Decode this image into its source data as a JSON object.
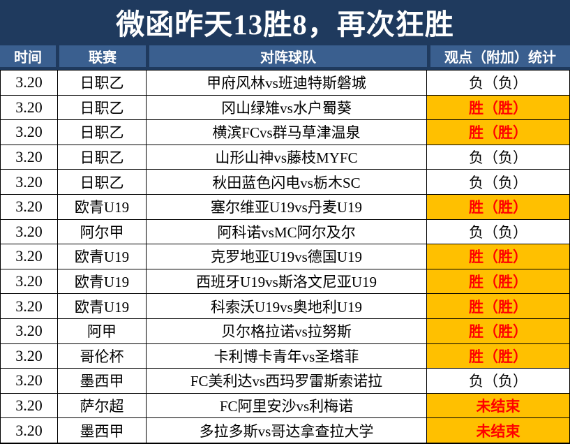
{
  "banner": {
    "title": "微函昨天13胜8，再次狂胜"
  },
  "table": {
    "headers": [
      "时间",
      "联赛",
      "对阵球队",
      "观点（附加）统计"
    ],
    "rows": [
      {
        "date": "3.20",
        "league": "日职乙",
        "match": "甲府风林vs班迪特斯磐城",
        "result": "负（负）",
        "result_type": "loss"
      },
      {
        "date": "3.20",
        "league": "日职乙",
        "match": "冈山绿雉vs水户蜀葵",
        "result": "胜（胜）",
        "result_type": "win"
      },
      {
        "date": "3.20",
        "league": "日职乙",
        "match": "横滨FCvs群马草津温泉",
        "result": "胜（胜）",
        "result_type": "win"
      },
      {
        "date": "3.20",
        "league": "日职乙",
        "match": "山形山神vs藤枝MYFC",
        "result": "负（负）",
        "result_type": "loss"
      },
      {
        "date": "3.20",
        "league": "日职乙",
        "match": "秋田蓝色闪电vs栃木SC",
        "result": "负（负）",
        "result_type": "loss"
      },
      {
        "date": "3.20",
        "league": "欧青U19",
        "match": "塞尔维亚U19vs丹麦U19",
        "result": "胜（胜）",
        "result_type": "win"
      },
      {
        "date": "3.20",
        "league": "阿尔甲",
        "match": "阿科诺vsMC阿尔及尔",
        "result": "负（负）",
        "result_type": "loss"
      },
      {
        "date": "3.20",
        "league": "欧青U19",
        "match": "克罗地亚U19vs德国U19",
        "result": "胜（胜）",
        "result_type": "win"
      },
      {
        "date": "3.20",
        "league": "欧青U19",
        "match": "西班牙U19vs斯洛文尼亚U19",
        "result": "胜（胜）",
        "result_type": "win"
      },
      {
        "date": "3.20",
        "league": "欧青U19",
        "match": "科索沃U19vs奥地利U19",
        "result": "胜（胜）",
        "result_type": "win"
      },
      {
        "date": "3.20",
        "league": "阿甲",
        "match": "贝尔格拉诺vs拉努斯",
        "result": "胜（胜）",
        "result_type": "win"
      },
      {
        "date": "3.20",
        "league": "哥伦杯",
        "match": "卡利博卡青年vs圣塔菲",
        "result": "胜（胜）",
        "result_type": "win"
      },
      {
        "date": "3.20",
        "league": "墨西甲",
        "match": "FC美利达vs西玛罗雷斯索诺拉",
        "result": "负（负）",
        "result_type": "loss"
      },
      {
        "date": "3.20",
        "league": "萨尔超",
        "match": "FC阿里安沙vs利梅诺",
        "result": "未结束",
        "result_type": "pending"
      },
      {
        "date": "3.20",
        "league": "墨西甲",
        "match": "多拉多斯vs哥达拿查拉大学",
        "result": "未结束",
        "result_type": "pending"
      }
    ]
  },
  "colors": {
    "banner_bg": "#1f3a5e",
    "header_bg": "#3a5f8f",
    "highlight_bg": "#ffc000",
    "highlight_text": "#ff0000",
    "text": "#000000",
    "border": "#000000"
  }
}
